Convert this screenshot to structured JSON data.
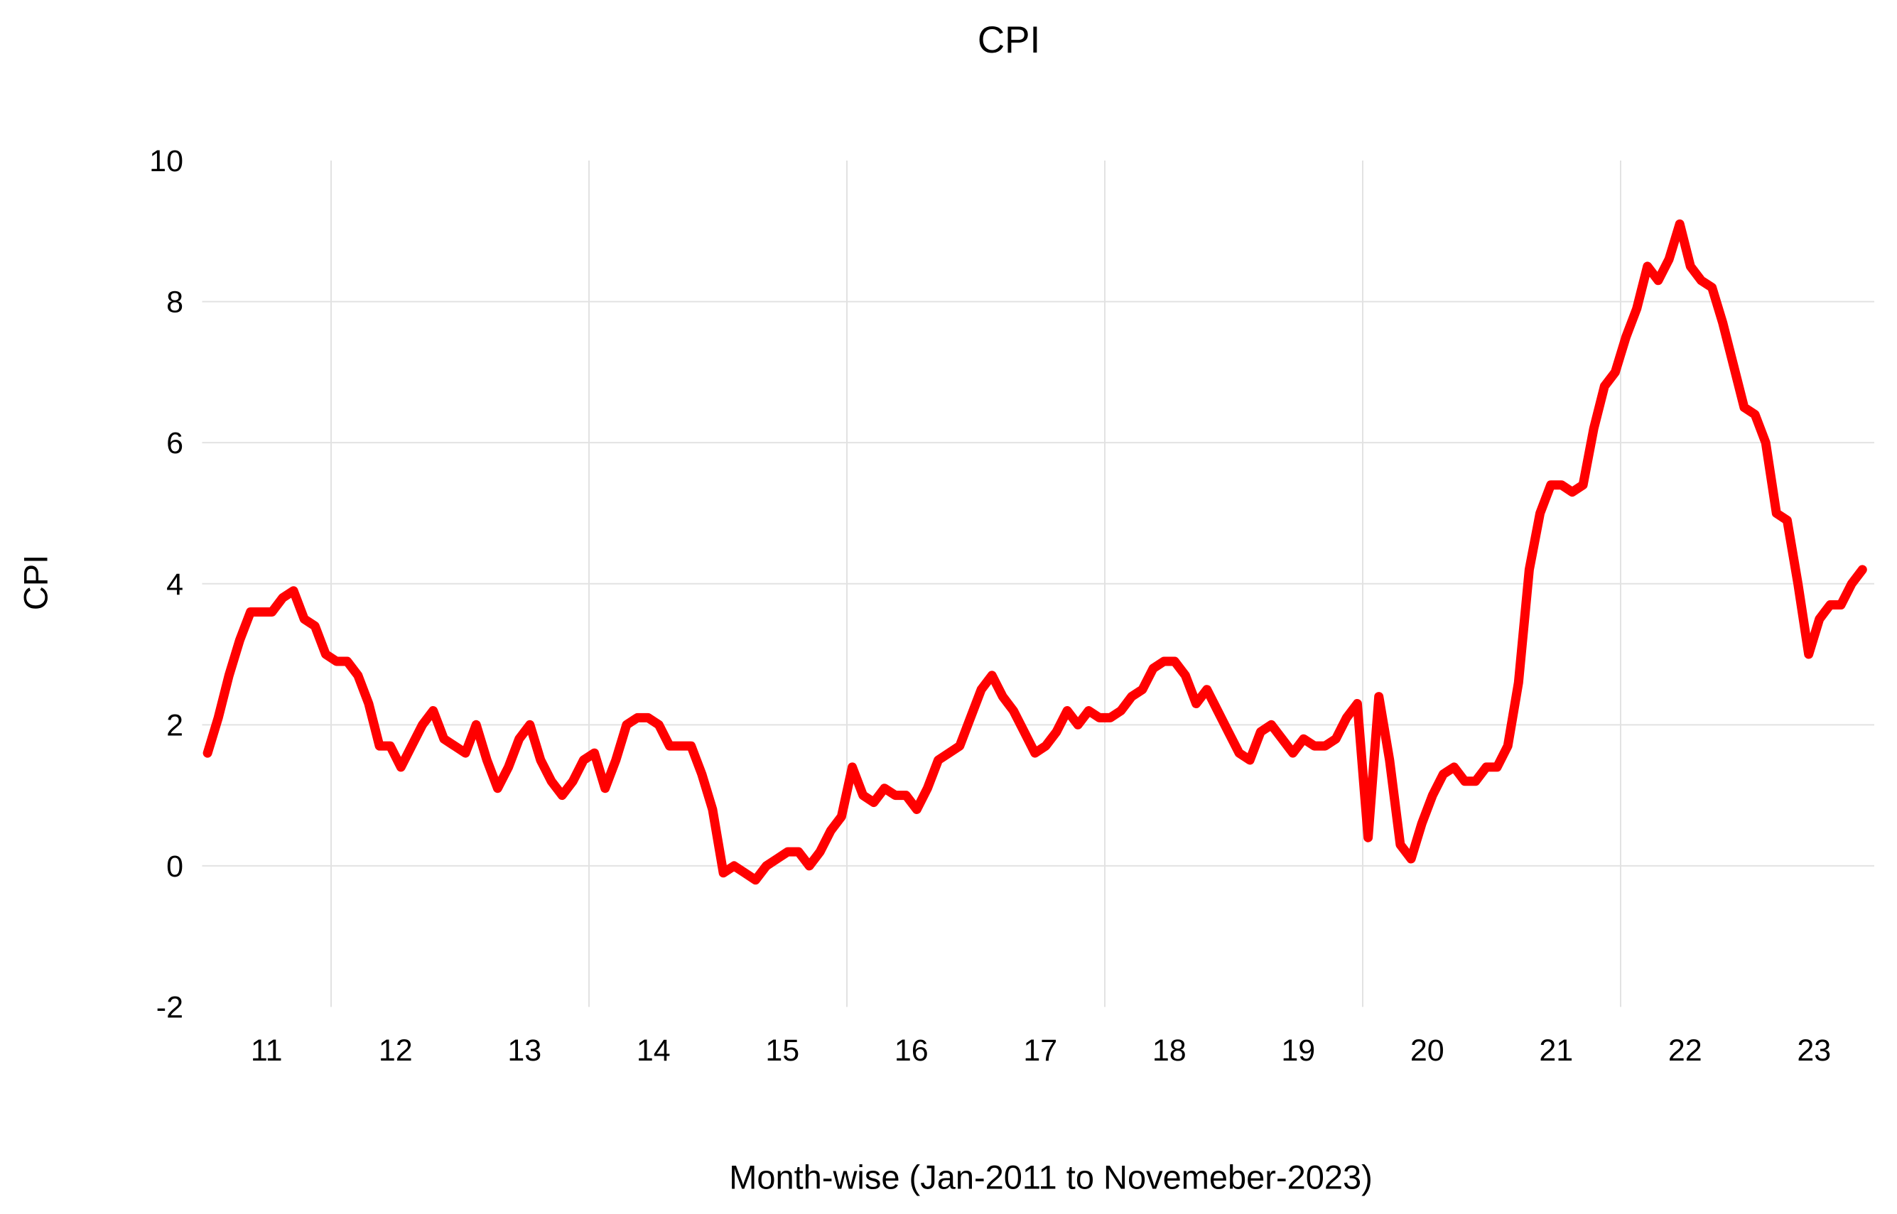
{
  "chart_data": {
    "type": "line",
    "title": "CPI",
    "xlabel": "Month-wise (Jan-2011 to Novemeber-2023)",
    "ylabel": "CPI",
    "x_start": "Jan-2011",
    "x_end": "Nov-2023",
    "x_frequency": "monthly",
    "n_points": 155,
    "series": [
      {
        "name": "CPI",
        "color": "#FF0000",
        "values": [
          1.6,
          2.1,
          2.7,
          3.2,
          3.6,
          3.6,
          3.6,
          3.8,
          3.9,
          3.5,
          3.4,
          3.0,
          2.9,
          2.9,
          2.7,
          2.3,
          1.7,
          1.7,
          1.4,
          1.7,
          2.0,
          2.2,
          1.8,
          1.7,
          1.6,
          2.0,
          1.5,
          1.1,
          1.4,
          1.8,
          2.0,
          1.5,
          1.2,
          1.0,
          1.2,
          1.5,
          1.6,
          1.1,
          1.5,
          2.0,
          2.1,
          2.1,
          2.0,
          1.7,
          1.7,
          1.7,
          1.3,
          0.8,
          -0.1,
          0.0,
          -0.1,
          -0.2,
          0.0,
          0.1,
          0.2,
          0.2,
          0.0,
          0.2,
          0.5,
          0.7,
          1.4,
          1.0,
          0.9,
          1.1,
          1.0,
          1.0,
          0.8,
          1.1,
          1.5,
          1.6,
          1.7,
          2.1,
          2.5,
          2.7,
          2.4,
          2.2,
          1.9,
          1.6,
          1.7,
          1.9,
          2.2,
          2.0,
          2.2,
          2.1,
          2.1,
          2.2,
          2.4,
          2.5,
          2.8,
          2.9,
          2.9,
          2.7,
          2.3,
          2.5,
          2.2,
          1.9,
          1.6,
          1.5,
          1.9,
          2.0,
          1.8,
          1.6,
          1.8,
          1.7,
          1.7,
          1.8,
          2.1,
          2.3,
          0.4,
          2.4,
          1.5,
          0.3,
          0.1,
          0.6,
          1.0,
          1.3,
          1.4,
          1.2,
          1.2,
          1.4,
          1.4,
          1.7,
          2.6,
          4.2,
          5.0,
          5.4,
          5.4,
          5.3,
          5.4,
          6.2,
          6.8,
          7.0,
          7.5,
          7.9,
          8.5,
          8.3,
          8.6,
          9.1,
          8.5,
          8.3,
          8.2,
          7.7,
          7.1,
          6.5,
          6.4,
          6.0,
          5.0,
          4.9,
          4.0,
          3.0,
          3.5,
          3.7,
          3.7,
          4.0,
          4.2
        ]
      }
    ],
    "x_tick_labels": [
      "11",
      "12",
      "13",
      "14",
      "15",
      "16",
      "17",
      "18",
      "19",
      "20",
      "21",
      "22",
      "23"
    ],
    "y_tick_labels": [
      "10",
      "8",
      "6",
      "4",
      "2",
      "0",
      "-2"
    ],
    "y_ticks": [
      10,
      8,
      6,
      4,
      2,
      0,
      -2
    ],
    "ylim": [
      -2,
      10
    ],
    "h_gridlines_at": [
      8,
      6,
      4,
      2,
      0
    ],
    "v_gridlines_at_month_index": [
      12,
      36,
      60,
      84,
      108,
      132
    ],
    "grid": true,
    "legend": "none",
    "line_color": "#FF0000",
    "gridline_color": "#E2E2E2",
    "background_color": "#FFFFFF",
    "text_color": "#000000"
  }
}
